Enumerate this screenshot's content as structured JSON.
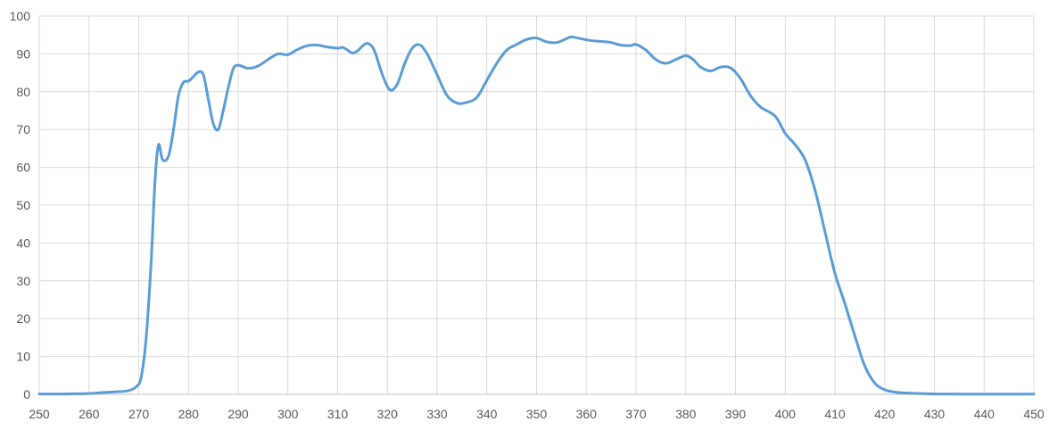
{
  "chart_data": {
    "type": "line",
    "title": "",
    "xlabel": "",
    "ylabel": "",
    "xlim": [
      250,
      450
    ],
    "ylim": [
      0,
      100
    ],
    "x_ticks": [
      250,
      260,
      270,
      280,
      290,
      300,
      310,
      320,
      330,
      340,
      350,
      360,
      370,
      380,
      390,
      400,
      410,
      420,
      430,
      440,
      450
    ],
    "y_ticks": [
      0,
      10,
      20,
      30,
      40,
      50,
      60,
      70,
      80,
      90,
      100
    ],
    "grid": true,
    "legend": "none",
    "colors": {
      "series": "#5b9bd5",
      "grid": "#d9d9d9",
      "axis": "#bfbfbf",
      "text": "#595959"
    },
    "series": [
      {
        "points": [
          [
            250,
            0.1
          ],
          [
            255,
            0.1
          ],
          [
            260,
            0.2
          ],
          [
            263,
            0.5
          ],
          [
            266,
            0.7
          ],
          [
            268,
            1.0
          ],
          [
            269.5,
            2.0
          ],
          [
            270.5,
            4.5
          ],
          [
            271.5,
            15
          ],
          [
            272.5,
            35
          ],
          [
            273.3,
            57
          ],
          [
            274,
            66
          ],
          [
            274.8,
            62
          ],
          [
            276,
            63
          ],
          [
            277,
            70
          ],
          [
            278,
            79
          ],
          [
            279,
            82.5
          ],
          [
            280,
            82.8
          ],
          [
            281,
            84
          ],
          [
            282,
            85.2
          ],
          [
            283,
            84.5
          ],
          [
            284,
            78
          ],
          [
            285,
            71.5
          ],
          [
            286,
            70
          ],
          [
            287,
            75
          ],
          [
            288,
            81
          ],
          [
            289,
            86
          ],
          [
            290,
            87
          ],
          [
            292,
            86.2
          ],
          [
            294,
            86.8
          ],
          [
            296,
            88.5
          ],
          [
            298,
            90
          ],
          [
            300,
            89.8
          ],
          [
            302,
            91.2
          ],
          [
            304,
            92.2
          ],
          [
            306,
            92.3
          ],
          [
            308,
            91.8
          ],
          [
            310,
            91.5
          ],
          [
            311,
            91.7
          ],
          [
            312,
            91
          ],
          [
            313,
            90.2
          ],
          [
            314,
            90.8
          ],
          [
            315.5,
            92.6
          ],
          [
            316.5,
            92.5
          ],
          [
            317.5,
            90.5
          ],
          [
            319,
            84.5
          ],
          [
            320.5,
            80.5
          ],
          [
            322,
            82
          ],
          [
            323.5,
            87.5
          ],
          [
            325,
            91.5
          ],
          [
            326.5,
            92.4
          ],
          [
            328,
            90
          ],
          [
            330,
            84.5
          ],
          [
            332,
            79
          ],
          [
            334,
            77
          ],
          [
            336,
            77.2
          ],
          [
            338,
            78.5
          ],
          [
            340,
            83
          ],
          [
            342,
            87.5
          ],
          [
            344,
            91
          ],
          [
            346,
            92.5
          ],
          [
            348,
            93.8
          ],
          [
            350,
            94.2
          ],
          [
            352,
            93.2
          ],
          [
            354,
            93
          ],
          [
            356,
            94
          ],
          [
            357,
            94.5
          ],
          [
            359,
            94
          ],
          [
            361,
            93.5
          ],
          [
            363,
            93.3
          ],
          [
            365,
            93
          ],
          [
            367,
            92.3
          ],
          [
            369,
            92.2
          ],
          [
            370,
            92.5
          ],
          [
            372,
            91
          ],
          [
            374,
            88.5
          ],
          [
            376,
            87.5
          ],
          [
            378,
            88.5
          ],
          [
            380,
            89.5
          ],
          [
            381.5,
            88.5
          ],
          [
            383,
            86.5
          ],
          [
            385,
            85.5
          ],
          [
            387,
            86.5
          ],
          [
            389,
            86.3
          ],
          [
            391,
            83.5
          ],
          [
            393,
            79
          ],
          [
            395,
            76
          ],
          [
            398,
            73.5
          ],
          [
            400,
            69
          ],
          [
            402,
            66
          ],
          [
            404,
            62
          ],
          [
            406,
            54
          ],
          [
            408,
            43
          ],
          [
            410,
            32
          ],
          [
            412,
            24
          ],
          [
            414,
            15.5
          ],
          [
            416,
            7.5
          ],
          [
            418,
            3
          ],
          [
            420,
            1.2
          ],
          [
            422,
            0.6
          ],
          [
            425,
            0.3
          ],
          [
            430,
            0.1
          ],
          [
            440,
            0.05
          ],
          [
            450,
            0.05
          ]
        ]
      }
    ]
  }
}
